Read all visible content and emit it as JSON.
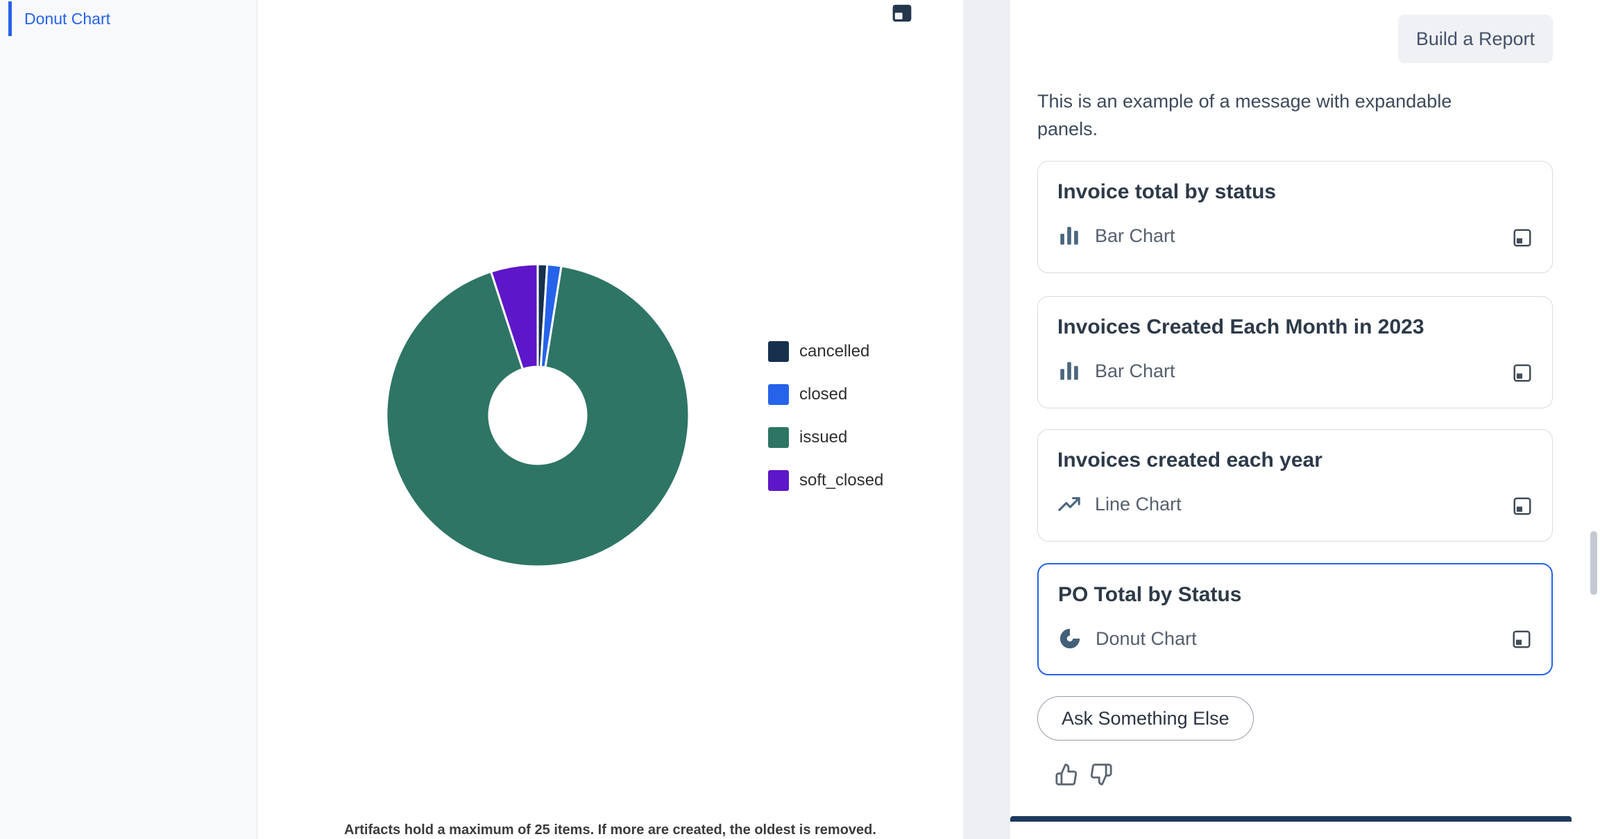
{
  "window": {
    "background": "#edeff3",
    "accent_color": "#2563eb"
  },
  "sidebar": {
    "items": [
      {
        "label": "Donut Chart",
        "active": true
      }
    ]
  },
  "artifact": {
    "note": "Artifacts hold a maximum of 25 items. If more are created, the oldest is removed.",
    "expand_icon": "expand-icon"
  },
  "chart_data": {
    "type": "pie",
    "hole": 0.32,
    "title": "",
    "labels": [
      "cancelled",
      "closed",
      "issued",
      "soft_closed"
    ],
    "values": [
      1.0,
      1.5,
      92.5,
      5.0
    ],
    "colors": [
      "#16304e",
      "#2563eb",
      "#2e7566",
      "#5d17c8"
    ],
    "legend_position": "right"
  },
  "chat": {
    "build_report_label": "Build a Report",
    "message": "This is an example of a message with expandable panels.",
    "cards": [
      {
        "title": "Invoice total by status",
        "chart_type": "Bar Chart",
        "icon": "bar-chart-icon",
        "selected": false
      },
      {
        "title": "Invoices Created Each Month in 2023",
        "chart_type": "Bar Chart",
        "icon": "bar-chart-icon",
        "selected": false
      },
      {
        "title": "Invoices created each year",
        "chart_type": "Line Chart",
        "icon": "line-chart-icon",
        "selected": false
      },
      {
        "title": "PO Total by Status",
        "chart_type": "Donut Chart",
        "icon": "donut-chart-icon",
        "selected": true
      }
    ],
    "ask_button_label": "Ask Something Else",
    "feedback_icons": [
      "thumbs-up-icon",
      "thumbs-down-icon"
    ]
  }
}
